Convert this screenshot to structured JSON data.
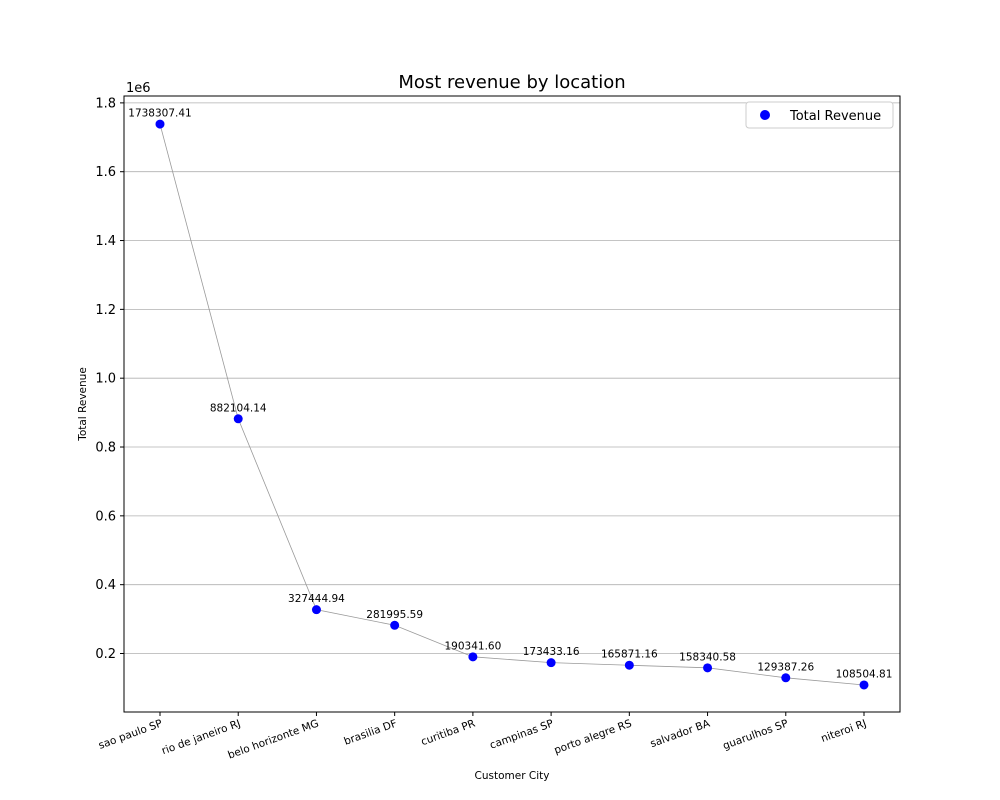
{
  "chart_data": {
    "type": "scatter",
    "title": "Most revenue by location",
    "xlabel": "Customer City",
    "ylabel": "Total Revenue",
    "y_offset_text": "1e6",
    "y_scale": 1000000,
    "ylim": [
      30000,
      1820000
    ],
    "yticks": [
      0.2,
      0.4,
      0.6,
      0.8,
      1.0,
      1.2,
      1.4,
      1.6,
      1.8
    ],
    "grid": "horizontal",
    "connecting_line": true,
    "legend_position": "top-right",
    "marker_color": "#0000ff",
    "line_color": "#9a9a9a",
    "categories": [
      "sao paulo SP",
      "rio de janeiro RJ",
      "belo horizonte MG",
      "brasilia DF",
      "curitiba PR",
      "campinas SP",
      "porto alegre RS",
      "salvador BA",
      "guarulhos SP",
      "niteroi RJ"
    ],
    "series": [
      {
        "name": "Total Revenue",
        "values": [
          1738307.41,
          882104.14,
          327444.94,
          281995.59,
          190341.6,
          173433.16,
          165871.16,
          158340.58,
          129387.26,
          108504.81
        ],
        "labels": [
          "1738307.41",
          "882104.14",
          "327444.94",
          "281995.59",
          "190341.60",
          "173433.16",
          "165871.16",
          "158340.58",
          "129387.26",
          "108504.81"
        ]
      }
    ]
  }
}
